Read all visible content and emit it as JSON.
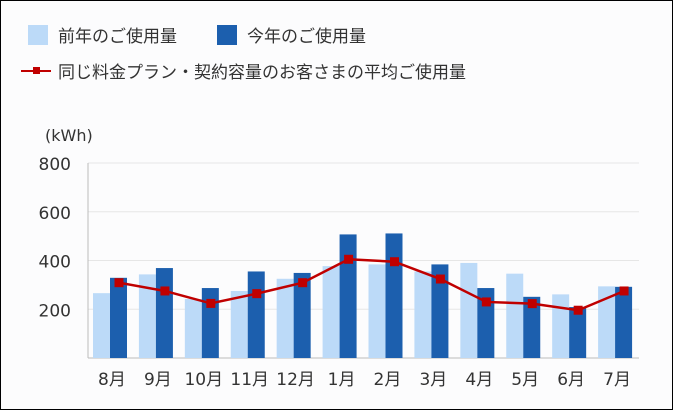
{
  "chart_data": {
    "type": "bar",
    "unit_label": "(kWh)",
    "categories": [
      "8月",
      "9月",
      "10月",
      "11月",
      "12月",
      "1月",
      "2月",
      "3月",
      "4月",
      "5月",
      "6月",
      "7月"
    ],
    "ylim": [
      0,
      800
    ],
    "yticks": [
      "200",
      "400",
      "600",
      "800"
    ],
    "ytick_values": [
      200,
      400,
      600,
      800
    ],
    "grid": true,
    "legend_position": "top-left",
    "series": [
      {
        "name": "前年のご使用量",
        "type": "bar",
        "color": "#bcdaf8",
        "values": [
          266,
          343,
          242,
          275,
          325,
          377,
          384,
          355,
          390,
          346,
          261,
          294
        ]
      },
      {
        "name": "今年のご使用量",
        "type": "bar",
        "color": "#1c5fae",
        "values": [
          329,
          369,
          287,
          355,
          349,
          507,
          511,
          384,
          287,
          251,
          209,
          292
        ]
      },
      {
        "name": "同じ料金プラン・契約容量のお客さまの平均ご使用量",
        "type": "line",
        "color": "#c00000",
        "values": [
          309,
          275,
          224,
          264,
          309,
          405,
          395,
          324,
          230,
          223,
          196,
          275
        ]
      }
    ]
  }
}
